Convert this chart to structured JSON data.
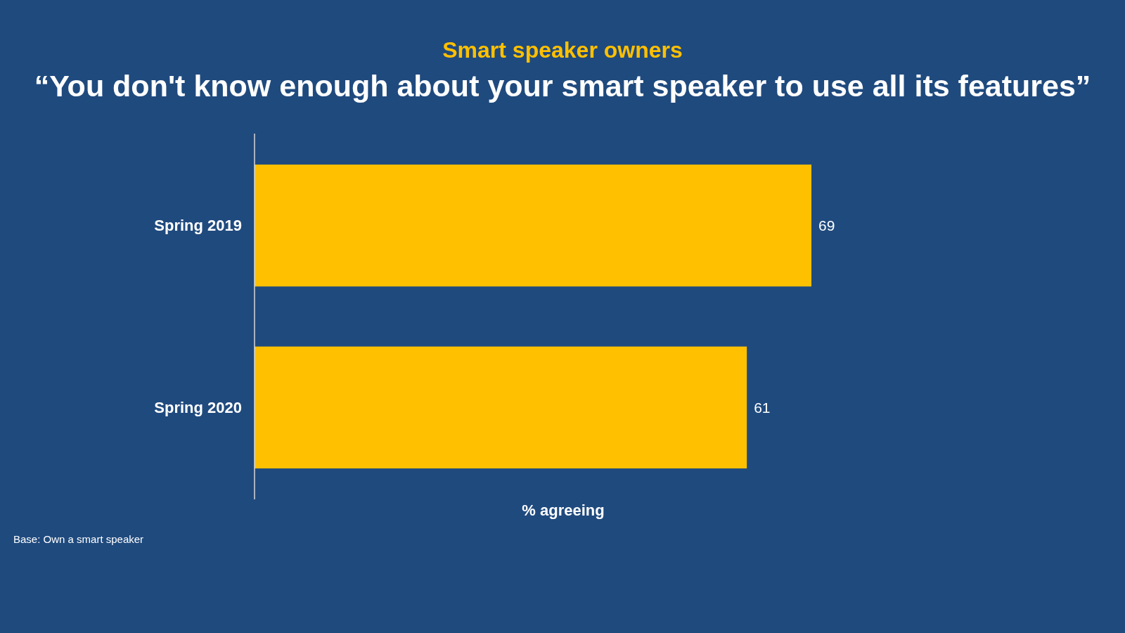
{
  "chart_data": {
    "type": "bar",
    "orientation": "horizontal",
    "subtitle": "Smart speaker owners",
    "title": "“You don't know enough about your smart speaker to use all its features”",
    "xlabel": "% agreeing",
    "categories": [
      "Spring 2019",
      "Spring 2020"
    ],
    "values": [
      69,
      61
    ],
    "color": "#ffc000",
    "data_labels": true,
    "tick_labels": "y",
    "annotations": [
      "Base: Own a smart speaker"
    ]
  }
}
